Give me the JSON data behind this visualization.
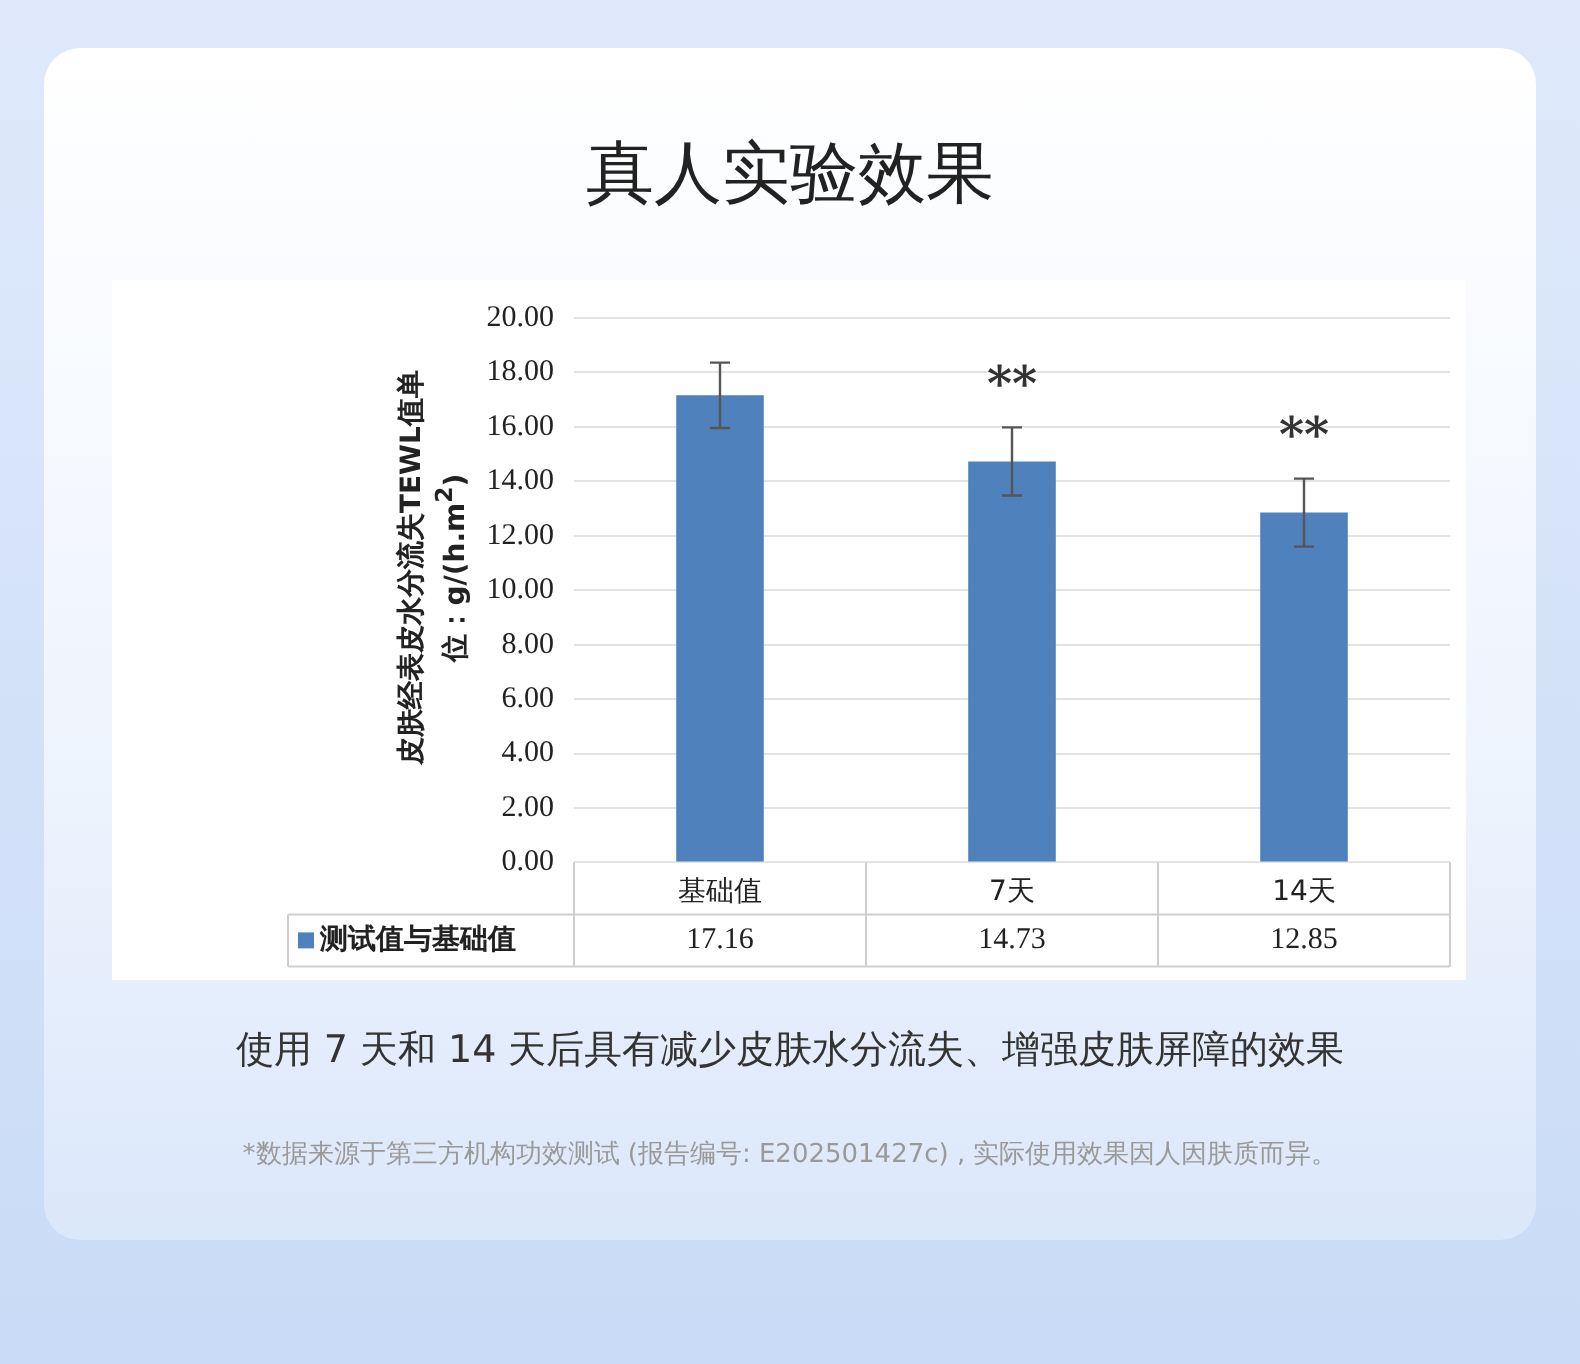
{
  "chart_data": {
    "type": "bar",
    "title": "真人实验效果",
    "ylabel": "皮肤经表皮水分流失TEWL值单位：g/(h.m$^{2}$)",
    "categories": [
      "基础值",
      "7天",
      "14天"
    ],
    "series": [
      {
        "name": "测试值与基础值",
        "color": "#4f81bd",
        "values": [
          17.16,
          14.73,
          12.85
        ],
        "errors": [
          1.2,
          1.25,
          1.25
        ]
      }
    ],
    "ylim": [
      0,
      20
    ],
    "yticks": [
      {
        "value": 0,
        "label": "0.00"
      },
      {
        "value": 2,
        "label": "2.00"
      },
      {
        "value": 4,
        "label": "4.00"
      },
      {
        "value": 6,
        "label": "6.00"
      },
      {
        "value": 8,
        "label": "8.00"
      },
      {
        "value": 10,
        "label": "10.00"
      },
      {
        "value": 12,
        "label": "12.00"
      },
      {
        "value": 14,
        "label": "14.00"
      },
      {
        "value": 16,
        "label": "16.00"
      },
      {
        "value": 18,
        "label": "18.00"
      },
      {
        "value": 20,
        "label": "20.00"
      }
    ],
    "grid": "y",
    "legend": "bottom",
    "data_labels": true,
    "annotations": [
      {
        "text": "**",
        "x": "7天",
        "y": 14.73
      },
      {
        "text": "**",
        "x": "14天",
        "y": 12.85
      },
      "使用 7 天和 14 天后具有减少皮肤水分流失、增强皮肤屏障的效果",
      "*数据来源于第三方机构功效测试 (报告编号: E202501427c) , 实际使用效果因人因肤质而异。"
    ]
  }
}
